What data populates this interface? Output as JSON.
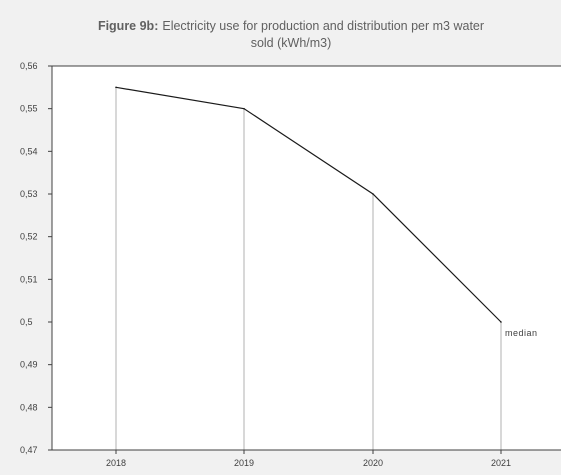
{
  "chart_data": {
    "type": "line",
    "title": {
      "prefix": "Figure 9b:",
      "line1": "Electricity use for production and distribution per m3 water",
      "line2": "sold  (kWh/m3)"
    },
    "xlabel": "",
    "ylabel": "",
    "categories": [
      "2018",
      "2019",
      "2020",
      "2021"
    ],
    "series": [
      {
        "values": [
          0.555,
          0.55,
          0.53,
          0.5
        ]
      }
    ],
    "drop_lines": true,
    "ylim": [
      0.47,
      0.56
    ],
    "yticks": [
      0.56,
      0.55,
      0.54,
      0.53,
      0.52,
      0.51,
      0.5,
      0.49,
      0.48,
      0.47
    ],
    "ytick_labels": [
      "0,56",
      "0,55",
      "0,54",
      "0,53",
      "0,52",
      "0,51",
      "0,5",
      "0,49",
      "0,48",
      "0,47"
    ],
    "annotations": [
      {
        "text": "median",
        "category": "2021",
        "value": 0.5
      }
    ],
    "grid": false,
    "colors": {
      "background": "#f1f1f1",
      "plot_area": "#ffffff",
      "axis": "#404040",
      "line": "#1a1a1a",
      "drop_line": "#b0b0b0"
    }
  }
}
